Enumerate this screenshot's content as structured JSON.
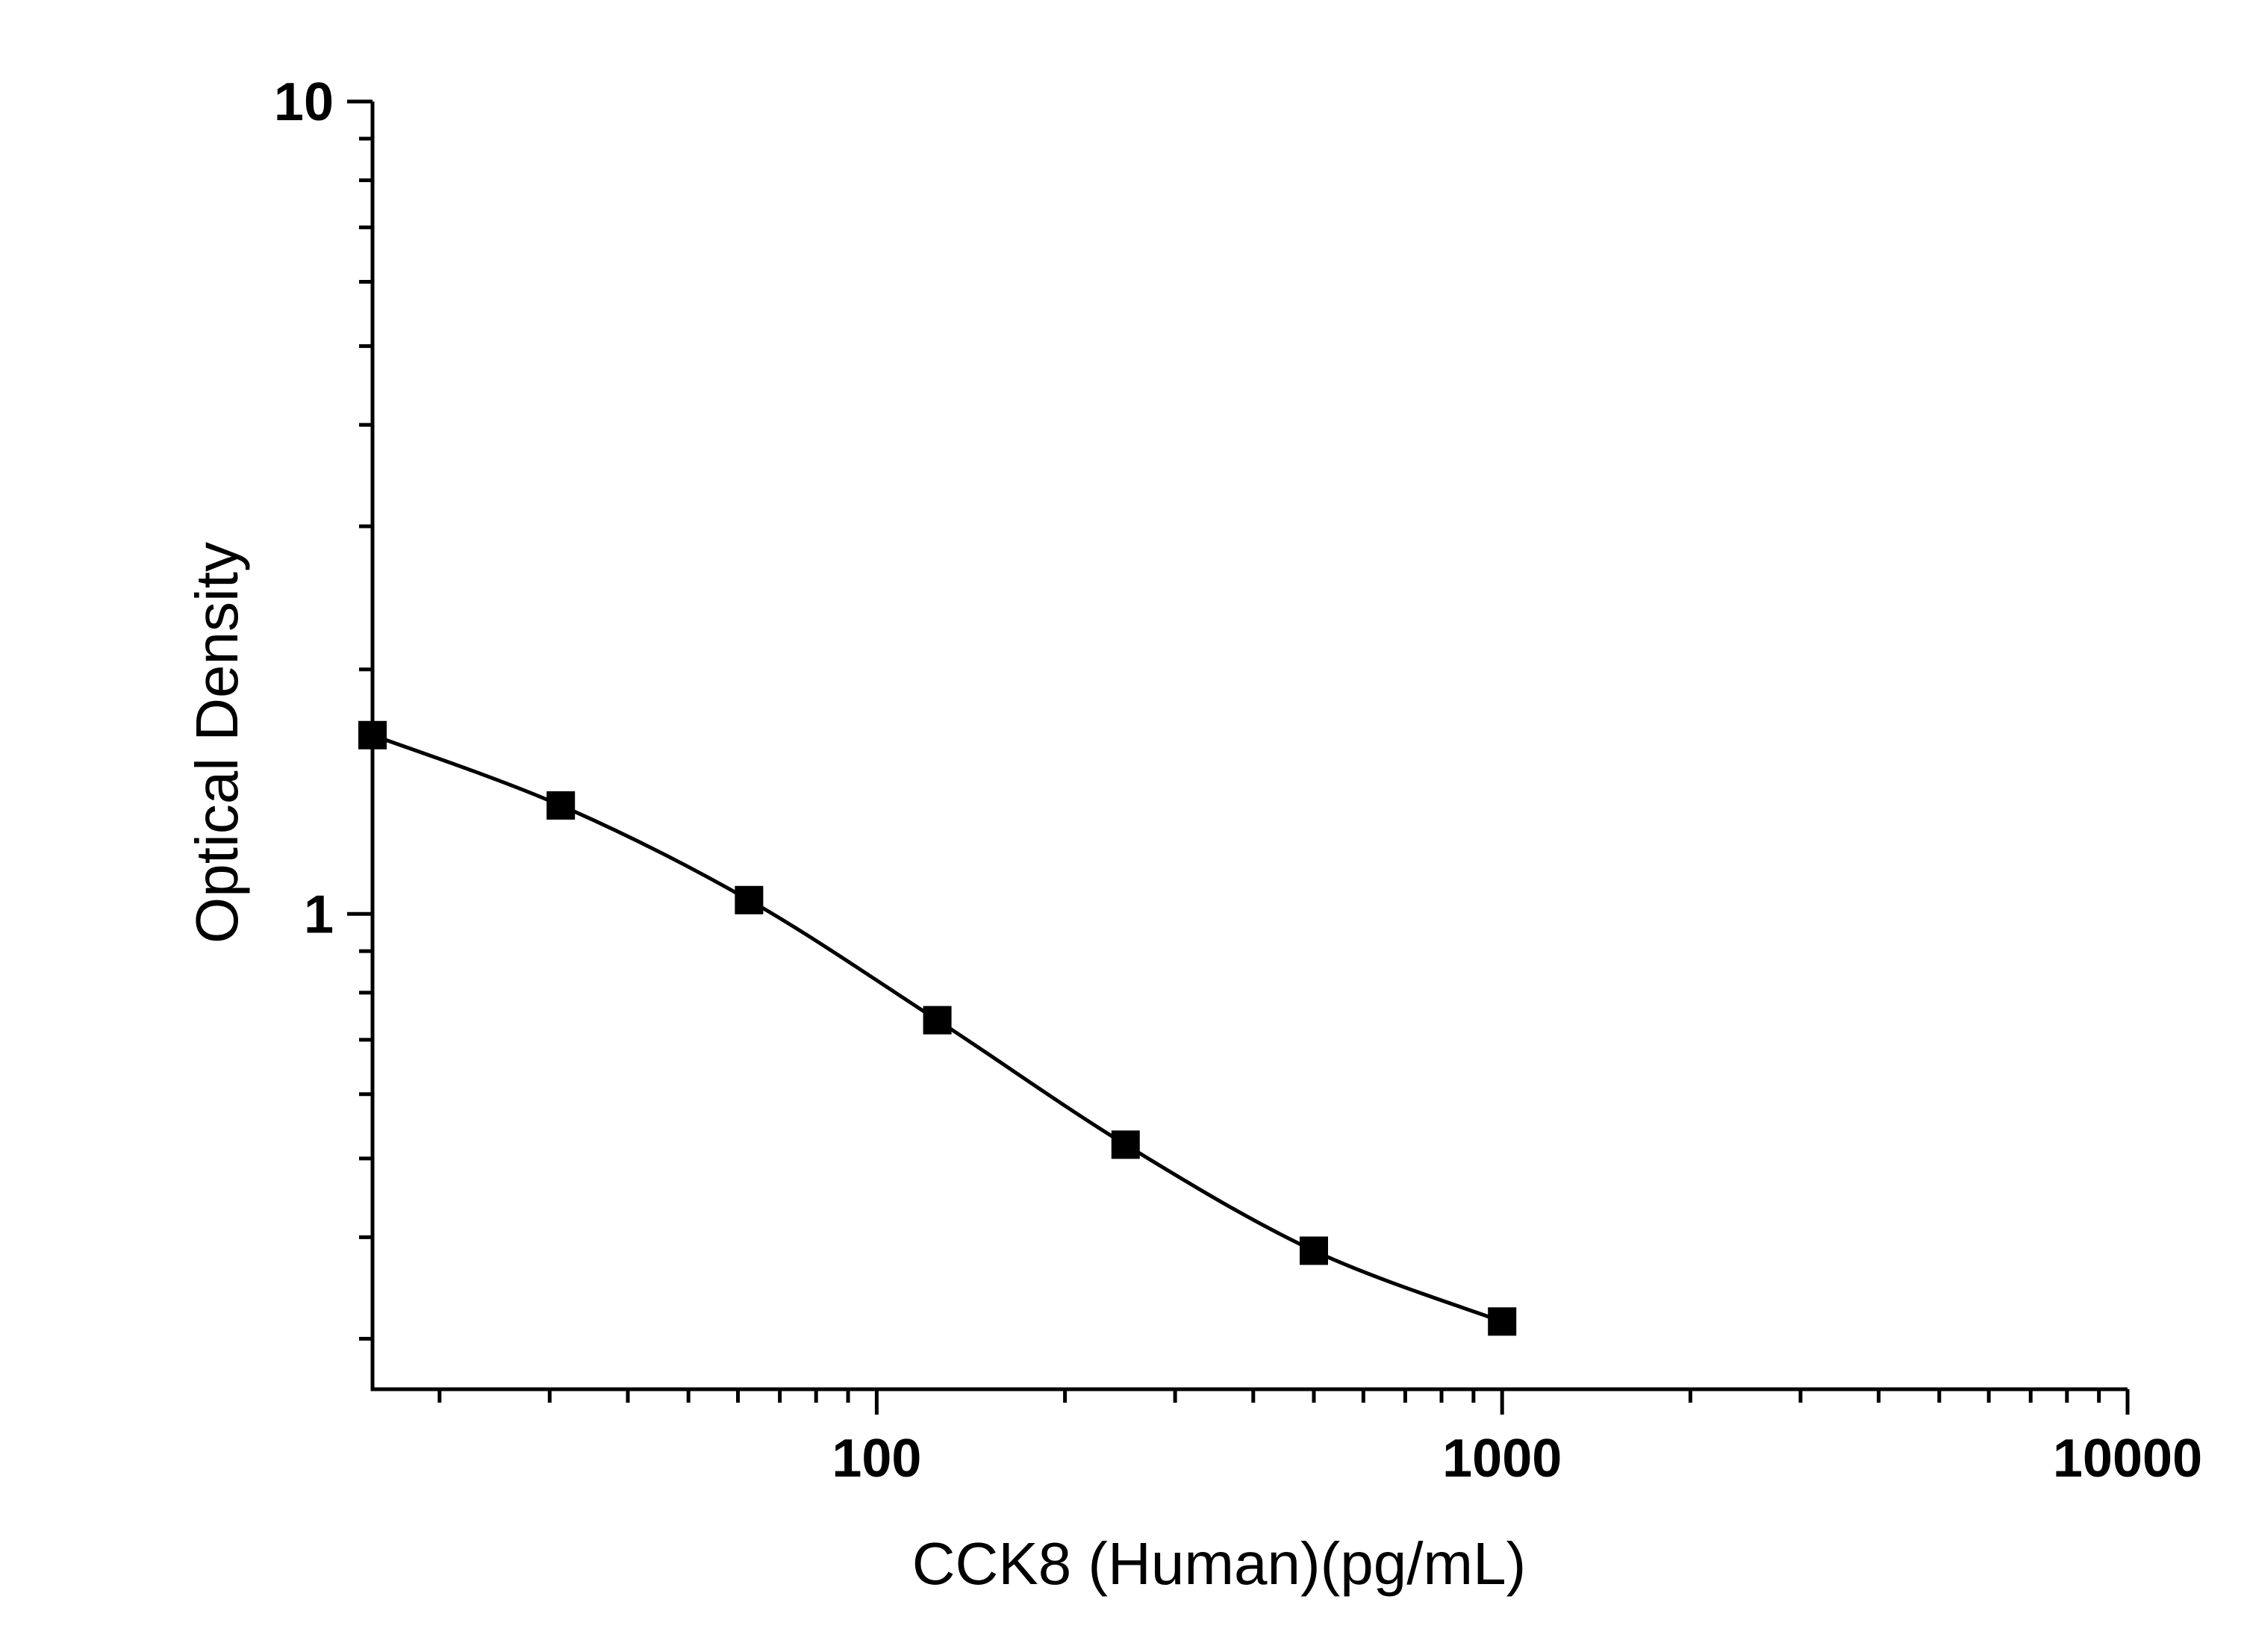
{
  "chart_data": {
    "type": "scatter",
    "title": "",
    "xlabel": "CCK8 (Human)(pg/mL)",
    "ylabel": "Optical Density",
    "x_scale": "log",
    "y_scale": "log",
    "xlim": [
      15.625,
      10000
    ],
    "ylim": [
      0.26,
      10
    ],
    "x_ticks": [
      100,
      1000,
      10000
    ],
    "x_tick_labels": [
      "100",
      "1000",
      "10000"
    ],
    "y_ticks": [
      1,
      10
    ],
    "y_tick_labels": [
      "1",
      "10"
    ],
    "grid": false,
    "legend": "none",
    "series": [
      {
        "marker": "square",
        "color": "#000000",
        "fit_line": true,
        "x": [
          15.625,
          31.25,
          62.5,
          125,
          250,
          500,
          1000
        ],
        "y": [
          1.66,
          1.36,
          1.04,
          0.74,
          0.52,
          0.385,
          0.315
        ]
      }
    ]
  }
}
